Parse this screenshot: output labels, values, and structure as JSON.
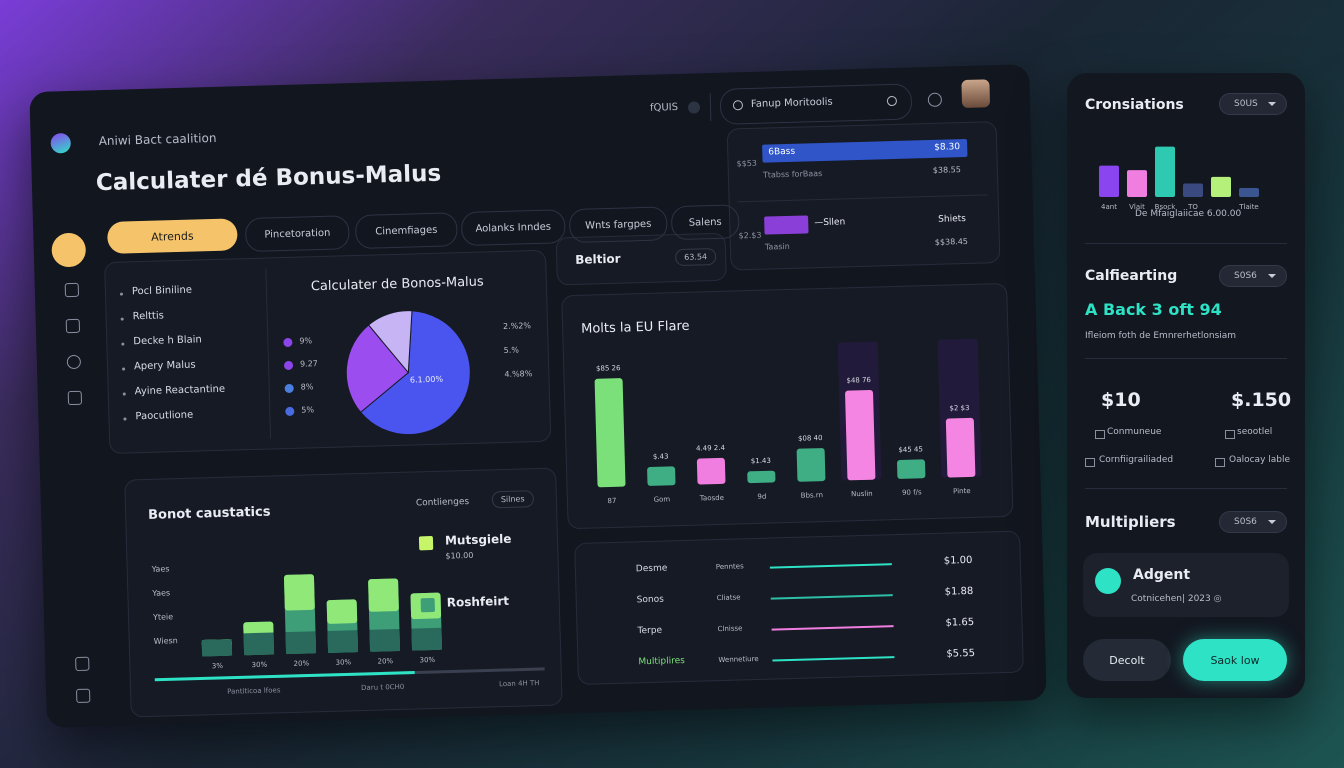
{
  "header": {
    "subtitle": "Aniwi Bact caalition",
    "title": "Calculater dé Bonus-Malus"
  },
  "topbar": {
    "toggle": "fQUIS",
    "search": "Fanup Moritoolis"
  },
  "tabs": [
    "Atrends",
    "Pincetoration",
    "Cinemfiages",
    "Aolanks Inndes",
    "Wnts fargpes",
    "Salens"
  ],
  "menu": [
    "Pocl Biniline",
    "Relttis",
    "Decke h Blain",
    "Apery Malus",
    "Ayine Reactantine",
    "Paocutlione"
  ],
  "pie_card": {
    "title": "Calculater de Bonos-Malus",
    "chart": {
      "type": "pie",
      "values": [
        63,
        25,
        12
      ],
      "colors": [
        "#4a55f0",
        "#9b4df0",
        "#c7b4f5"
      ]
    },
    "center_label": "6.1.00%",
    "legend": [
      {
        "label": "9%",
        "color": "#8b45e8"
      },
      {
        "label": "9.27",
        "color": "#8b45e8"
      },
      {
        "label": "8%",
        "color": "#4a7fe0"
      },
      {
        "label": "5%",
        "color": "#4a6ae0"
      }
    ],
    "side_labels": [
      "2.%2%",
      "5.%",
      "4.%8%"
    ]
  },
  "beltior": {
    "title": "Beltior",
    "chip": "63.54"
  },
  "table": {
    "rows": [
      {
        "left": "$$53",
        "bar": "6Bass",
        "value": "$8.30",
        "sub": "Ttabss forBaas",
        "sub_value": "$38.55"
      },
      {
        "left": "$2.$3",
        "bar": "—Sllen",
        "value": "Shiets",
        "sub": "Taasin",
        "sub_value": "$$38.45"
      }
    ]
  },
  "flare_chart": {
    "type": "bar",
    "title": "Molts la EU Flare",
    "categories": [
      "87",
      "Gom",
      "Taosde",
      "9d",
      "Bbs.rn",
      "Nuslin",
      "90 f/s",
      "Pinte"
    ],
    "values": [
      92,
      16,
      22,
      10,
      28,
      76,
      16,
      50
    ],
    "colors": [
      "#7be07a",
      "#3fae84",
      "#f07ee0",
      "#3fae84",
      "#3fae84",
      "#f585e2",
      "#3fae84",
      "#f585e2"
    ],
    "bar_labels": [
      "$85 26",
      "$.43",
      "4.49 2.4",
      "$1.43",
      "$08 40",
      "$48 76",
      "$45 45",
      "$2 $3"
    ]
  },
  "bonot_chart": {
    "type": "bar",
    "title": "Bonot caustatics",
    "filter": "Contlienges",
    "chip": "Silnes",
    "y_labels": [
      "Yaes",
      "Yaes",
      "Yteie",
      "Wiesn"
    ],
    "categories": [
      "3%",
      "30%",
      "20%",
      "30%",
      "20%",
      "30%"
    ],
    "values": [
      15,
      30,
      72,
      48,
      66,
      52
    ],
    "legend": [
      {
        "name": "Mutsgiele",
        "sub": "$10.00",
        "color": "#c6f56a"
      },
      {
        "name": "Roshfeirt",
        "color": "#3e9e78"
      }
    ],
    "footer": [
      "Pantiticoa lfoes",
      "Daru t 0CH0",
      "Loan 4H TH"
    ]
  },
  "multiplier_list": [
    {
      "label": "Desme",
      "sub": "Penntes",
      "value": "$1.00",
      "color": "#2de2c5"
    },
    {
      "label": "Sonos",
      "sub": "Cliatse",
      "value": "$1.88",
      "color": "#2dbfa8"
    },
    {
      "label": "Terpe",
      "sub": "Clnisse",
      "value": "$1.65",
      "color": "#f07ee0"
    },
    {
      "label": "Multiplires",
      "sub": "Wennetiure",
      "value": "$5.55",
      "color": "#2de2c5"
    }
  ],
  "side_panel": {
    "cronsiations": {
      "title": "Cronsiations",
      "chip": "S0US",
      "chart": {
        "type": "bar",
        "categories": [
          "4ant",
          "Vlait",
          "Bsock",
          "TO",
          null,
          "Tlaite"
        ],
        "values": [
          28,
          24,
          45,
          12,
          18,
          8
        ],
        "colors": [
          "#8a45f0",
          "#f07ee0",
          "#2dc9b0",
          "#3a4a80",
          "#b5f07a",
          "#3a5590"
        ]
      },
      "caption": "De Mfaiglaiicae 6.00.00"
    },
    "calfiearting": {
      "title": "Calfiearting",
      "chip": "S0S6",
      "headline": "A Back 3 oft 94",
      "note": "Ifleiom foth de Emnrerhetlonsiam"
    },
    "stats": [
      {
        "value": "$10",
        "label": "Conmuneue",
        "sub": "Cornfiigrailiaded"
      },
      {
        "value": "$.150",
        "label": "seootlel",
        "sub": "Oalocay lable"
      }
    ],
    "multipliers": {
      "title": "Multipliers",
      "chip": "S0S6",
      "item": "Adgent",
      "item_sub": "Cotnicehen| 2023 ◎"
    },
    "buttons": [
      "Decolt",
      "Saok low"
    ]
  }
}
